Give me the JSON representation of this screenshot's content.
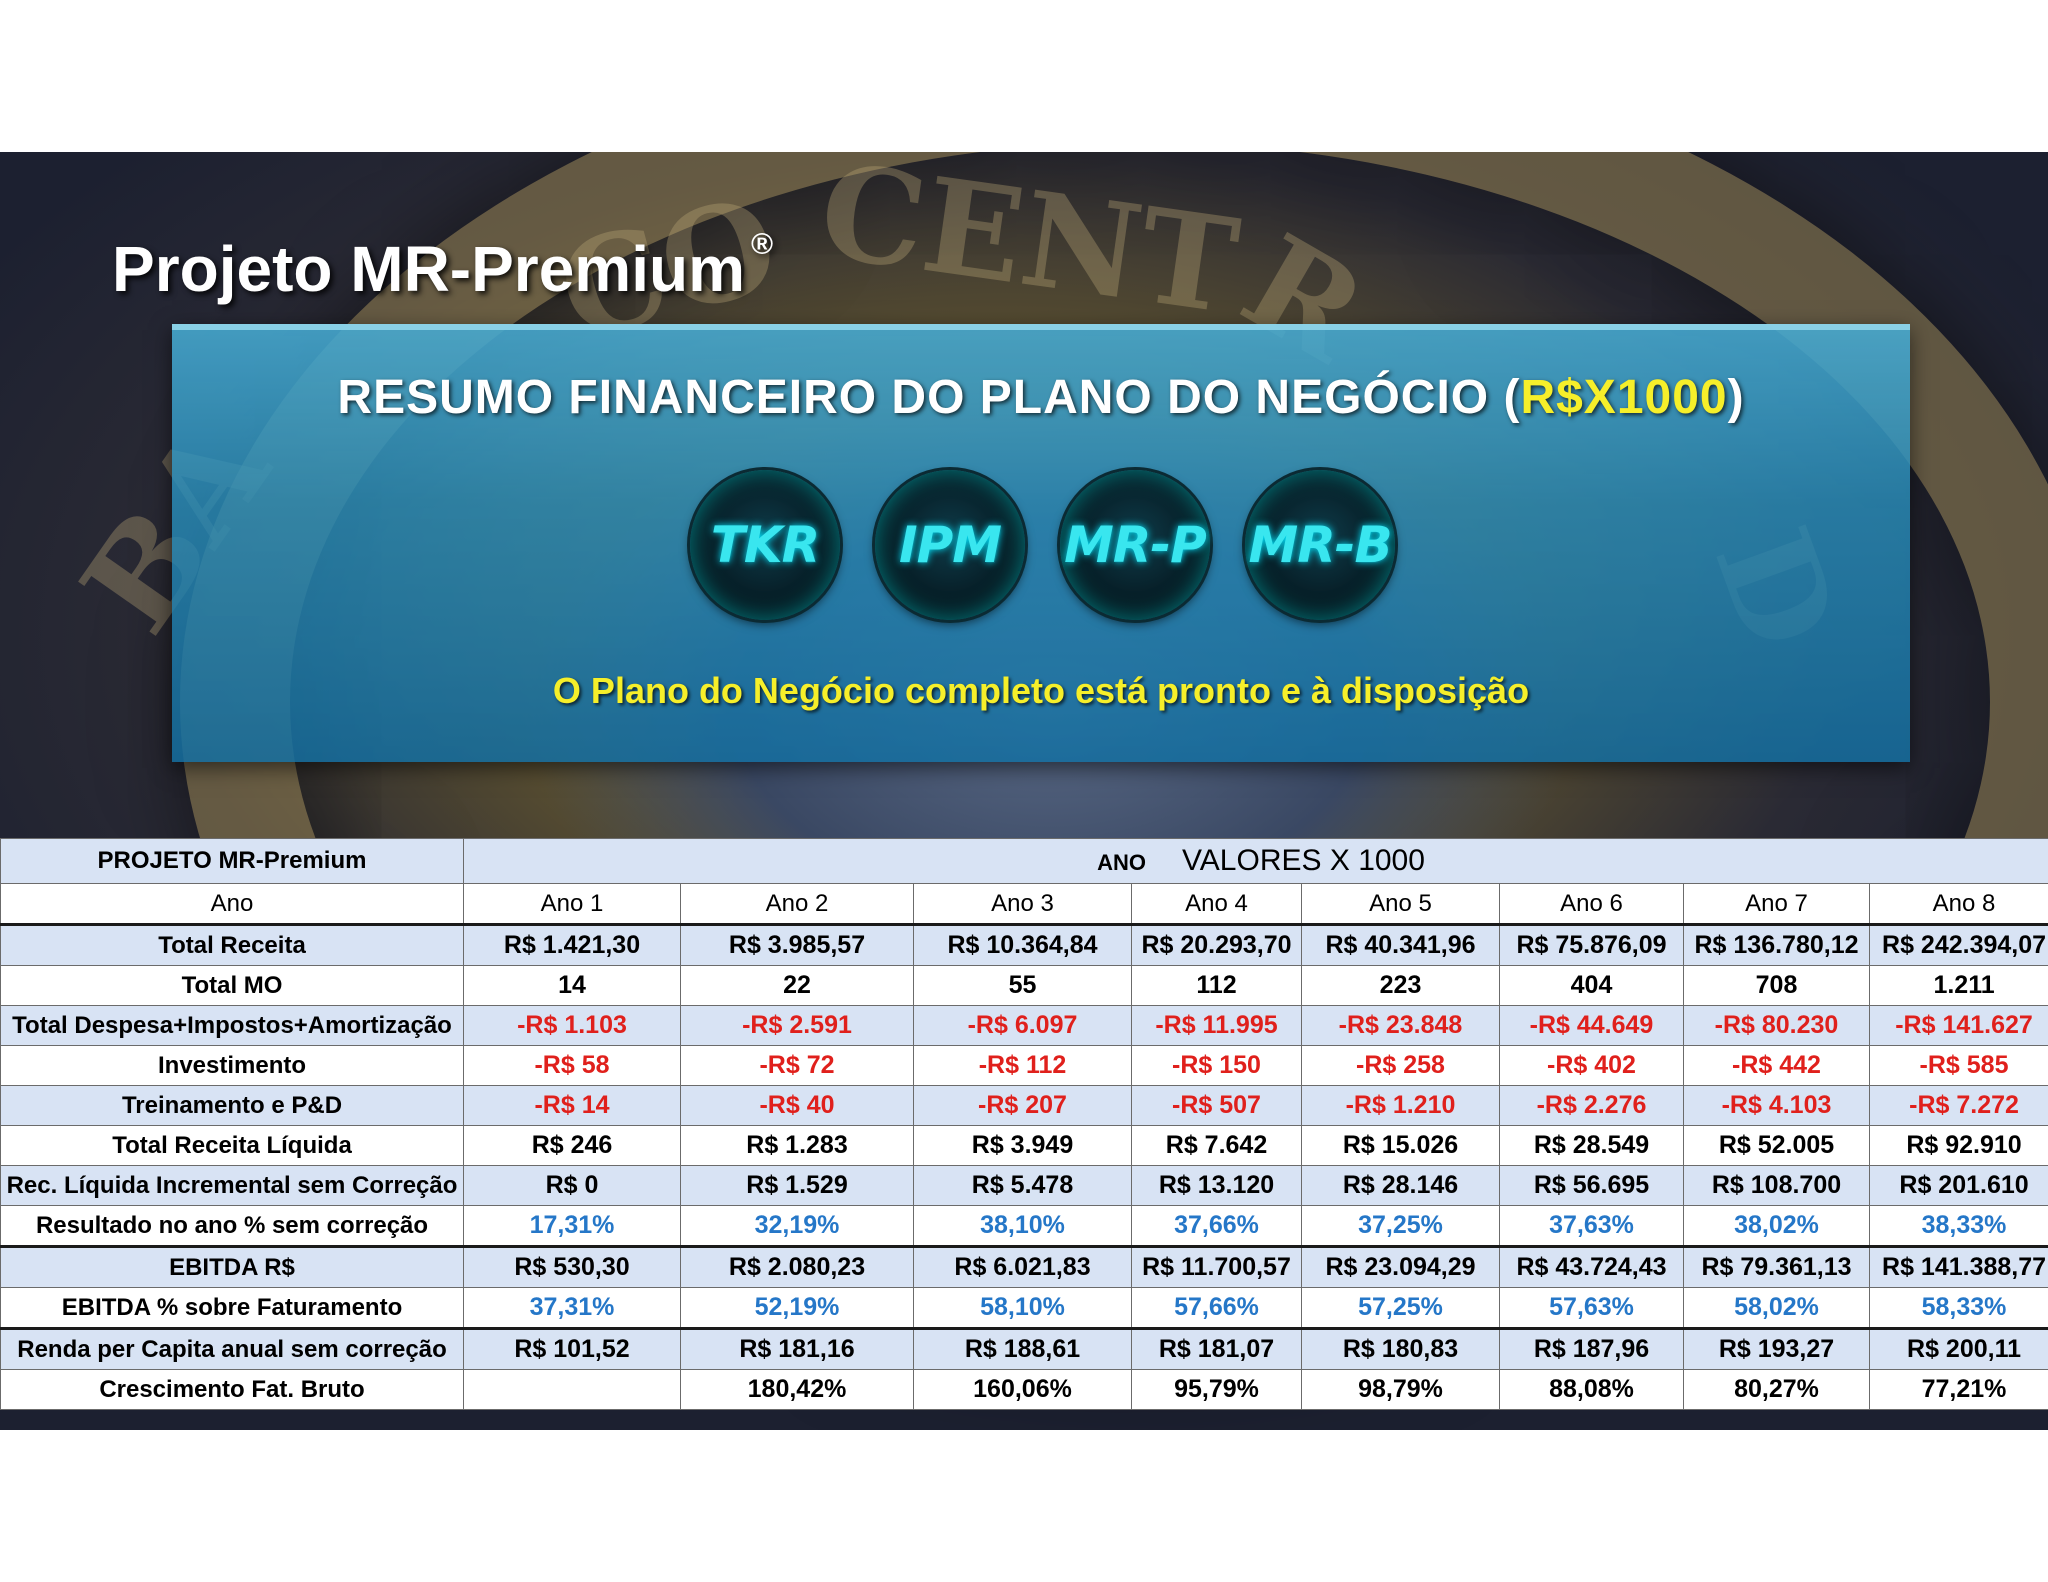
{
  "slide": {
    "title": "Projeto MR-Premium",
    "title_mark": "®"
  },
  "panel": {
    "heading_prefix": "RESUMO FINANCEIRO DO PLANO DO NEGÓCIO (",
    "heading_highlight": "R$X1000",
    "heading_suffix": ")",
    "logos": [
      "TKR",
      "IPM",
      "MR-P",
      "MR-B"
    ],
    "tagline": "O Plano do Negócio completo está pronto e à disposição"
  },
  "table": {
    "project_label": "PROJETO MR-Premium",
    "ano_label": "ANO",
    "values_label": "VALORES X 1000",
    "year_header": "Ano",
    "years": [
      "Ano 1",
      "Ano 2",
      "Ano 3",
      "Ano 4",
      "Ano 5",
      "Ano 6",
      "Ano 7",
      "Ano 8"
    ],
    "rows": [
      {
        "label": "Total Receita",
        "kind": "plain",
        "values": [
          "R$ 1.421,30",
          "R$ 3.985,57",
          "R$ 10.364,84",
          "R$ 20.293,70",
          "R$ 40.341,96",
          "R$ 75.876,09",
          "R$ 136.780,12",
          "R$ 242.394,07"
        ]
      },
      {
        "label": "Total MO",
        "kind": "plain",
        "values": [
          "14",
          "22",
          "55",
          "112",
          "223",
          "404",
          "708",
          "1.211"
        ]
      },
      {
        "label": "Total Despesa+Impostos+Amortização",
        "kind": "neg",
        "values": [
          "-R$ 1.103",
          "-R$ 2.591",
          "-R$ 6.097",
          "-R$ 11.995",
          "-R$ 23.848",
          "-R$ 44.649",
          "-R$ 80.230",
          "-R$ 141.627"
        ]
      },
      {
        "label": "Investimento",
        "kind": "neg",
        "values": [
          "-R$ 58",
          "-R$ 72",
          "-R$ 112",
          "-R$ 150",
          "-R$ 258",
          "-R$ 402",
          "-R$ 442",
          "-R$ 585"
        ]
      },
      {
        "label": "Treinamento e P&D",
        "kind": "neg",
        "values": [
          "-R$ 14",
          "-R$ 40",
          "-R$ 207",
          "-R$ 507",
          "-R$ 1.210",
          "-R$ 2.276",
          "-R$ 4.103",
          "-R$ 7.272"
        ]
      },
      {
        "label": "Total Receita Líquida",
        "kind": "plain",
        "values": [
          "R$ 246",
          "R$ 1.283",
          "R$ 3.949",
          "R$ 7.642",
          "R$ 15.026",
          "R$ 28.549",
          "R$ 52.005",
          "R$ 92.910"
        ]
      },
      {
        "label": "Rec. Líquida Incremental sem Correção",
        "kind": "plain",
        "values": [
          "R$ 0",
          "R$ 1.529",
          "R$ 5.478",
          "R$ 13.120",
          "R$ 28.146",
          "R$ 56.695",
          "R$ 108.700",
          "R$ 201.610"
        ]
      },
      {
        "label": "Resultado no ano % sem correção",
        "kind": "pct",
        "values": [
          "17,31%",
          "32,19%",
          "38,10%",
          "37,66%",
          "37,25%",
          "37,63%",
          "38,02%",
          "38,33%"
        ]
      },
      {
        "label": "EBITDA R$",
        "kind": "plain",
        "values": [
          "R$ 530,30",
          "R$ 2.080,23",
          "R$ 6.021,83",
          "R$ 11.700,57",
          "R$ 23.094,29",
          "R$ 43.724,43",
          "R$ 79.361,13",
          "R$ 141.388,77"
        ]
      },
      {
        "label": "EBITDA % sobre Faturamento",
        "kind": "pct",
        "values": [
          "37,31%",
          "52,19%",
          "58,10%",
          "57,66%",
          "57,25%",
          "57,63%",
          "58,02%",
          "58,33%"
        ]
      },
      {
        "label": "Renda per Capita anual sem correção",
        "kind": "plain",
        "values": [
          "R$ 101,52",
          "R$ 181,16",
          "R$ 188,61",
          "R$ 181,07",
          "R$ 180,83",
          "R$ 187,96",
          "R$ 193,27",
          "R$ 200,11"
        ]
      },
      {
        "label": "Crescimento Fat. Bruto",
        "kind": "plain",
        "values": [
          "",
          "180,42%",
          "160,06%",
          "95,79%",
          "98,79%",
          "88,08%",
          "80,27%",
          "77,21%"
        ]
      }
    ]
  }
}
